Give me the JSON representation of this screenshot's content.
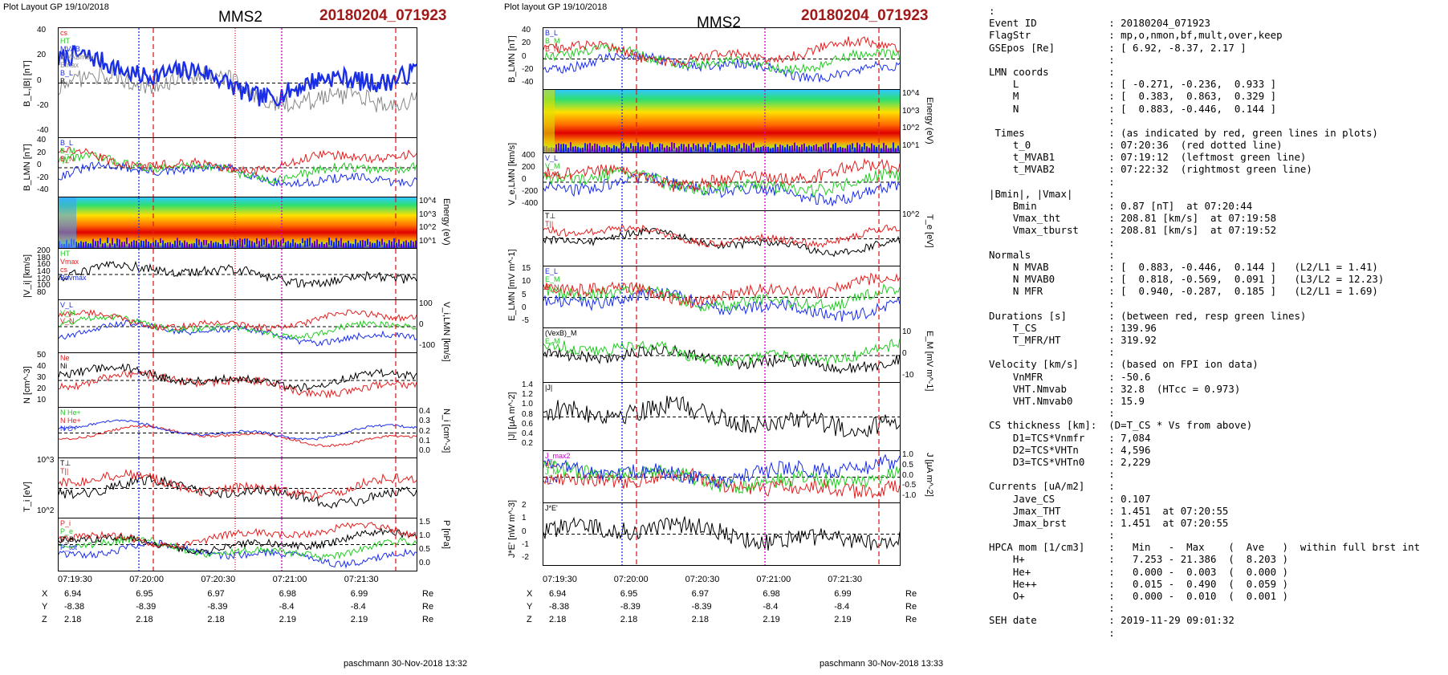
{
  "left_figure": {
    "header_left": "Plot Layout GP 19/10/2018",
    "spacecraft": "MMS2",
    "event": "20180204_071923",
    "panels": [
      {
        "ylabel": "B_L,|B| [nT]",
        "yticks": [
          "40",
          "20",
          "0",
          "-20",
          "-40"
        ],
        "legend": [
          "cs",
          "HT",
          "MVAB",
          "MVABmax",
          "Bmax",
          "B_L",
          "B"
        ]
      },
      {
        "ylabel": "B_LMN [nT]",
        "yticks": [
          "40",
          "20",
          "0",
          "-20",
          "-40"
        ],
        "legend": [
          "B_L",
          "B_M",
          "B_N"
        ]
      },
      {
        "ylabel": "",
        "ryticks": [
          "10^4",
          "10^3",
          "10^2",
          "10^1"
        ],
        "rlabel": "Energy (eV)"
      },
      {
        "ylabel": "|V_i| [km/s]",
        "yticks": [
          "200",
          "180",
          "160",
          "140",
          "120",
          "100",
          "80"
        ],
        "legend": [
          "HT",
          "Vmax",
          "cs",
          "Bnvmax"
        ]
      },
      {
        "ylabel": "",
        "ryticks": [
          "100",
          "0",
          "-100"
        ],
        "rlabel": "V_i,LMN [km/s]",
        "legend": [
          "V_L",
          "V_M",
          "V_N"
        ]
      },
      {
        "ylabel": "N [cm^-3]",
        "yticks": [
          "50",
          "40",
          "30",
          "20",
          "10"
        ],
        "legend": [
          "Ne",
          "Ni"
        ]
      },
      {
        "ylabel": "",
        "ryticks": [
          "0.4",
          "0.3",
          "0.2",
          "0.1",
          "0.0"
        ],
        "rlabel": "N_i [cm^-3]",
        "legend": [
          "N He+",
          "N He+",
          "N O+"
        ]
      },
      {
        "ylabel": "T_i [eV]",
        "yticks": [
          "10^3",
          "10^2"
        ],
        "legend": [
          "T⊥",
          "T||"
        ]
      },
      {
        "ylabel": "",
        "ryticks": [
          "1.5",
          "1.0",
          "0.5",
          "0.0"
        ],
        "rlabel": "P [nPa]",
        "legend": [
          "P_i",
          "P_e",
          "P_B",
          "P_tot"
        ]
      }
    ],
    "xticks": [
      "07:19:30",
      "07:20:00",
      "07:20:30",
      "07:21:00",
      "07:21:30"
    ],
    "coords": {
      "X": [
        "6.94",
        "6.95",
        "6.97",
        "6.98",
        "6.99"
      ],
      "Y": [
        "-8.38",
        "-8.39",
        "-8.39",
        "-8.4",
        "-8.4"
      ],
      "Z": [
        "2.18",
        "2.18",
        "2.18",
        "2.19",
        "2.19"
      ],
      "unit": "Re"
    },
    "footer": "paschmann 30-Nov-2018 13:32"
  },
  "right_figure": {
    "header_left": "Plot layout GP 19/10/2018",
    "spacecraft": "MMS2",
    "event": "20180204_071923",
    "panels": [
      {
        "ylabel": "B_LMN [nT]",
        "yticks": [
          "40",
          "20",
          "0",
          "-20",
          "-40"
        ],
        "legend": [
          "B_L",
          "B_M",
          "B_N"
        ]
      },
      {
        "ylabel": "",
        "ryticks": [
          "10^4",
          "10^3",
          "10^2",
          "10^1"
        ],
        "rlabel": "Energy (eV)"
      },
      {
        "ylabel": "V_e,LMN [km/s]",
        "yticks": [
          "400",
          "200",
          "0",
          "-200",
          "-400"
        ],
        "legend": [
          "V_L",
          "V_M",
          "V_N"
        ]
      },
      {
        "ylabel": "",
        "ryticks": [
          "10^2"
        ],
        "rlabel": "T_e [eV]",
        "legend": [
          "T⊥",
          "T||"
        ]
      },
      {
        "ylabel": "E_LMN [mV m^-1]",
        "yticks": [
          "15",
          "10",
          "5",
          "0",
          "-5"
        ],
        "legend": [
          "E_L",
          "E_M",
          "E_N"
        ]
      },
      {
        "ylabel": "",
        "ryticks": [
          "10",
          "0",
          "-10"
        ],
        "rlabel": "E_M [mV m^-1]",
        "legend": [
          "(VexB)_M",
          "E_M"
        ]
      },
      {
        "ylabel": "|J| [µA m^-2]",
        "yticks": [
          "1.4",
          "1.2",
          "1.0",
          "0.8",
          "0.6",
          "0.4",
          "0.2"
        ],
        "legend": [
          "|J|"
        ]
      },
      {
        "ylabel": "",
        "ryticks": [
          "1.0",
          "0.5",
          "0.0",
          "-0.5",
          "-1.0"
        ],
        "rlabel": "J [µA m^-2]",
        "legend": [
          "J_max2",
          "J_L",
          "J_M",
          "J_N"
        ]
      },
      {
        "ylabel": "J*E' [nW m^-3]",
        "yticks": [
          "2",
          "1",
          "0",
          "-1",
          "-2"
        ],
        "legend": [
          "J*E'"
        ]
      }
    ],
    "xticks": [
      "07:19:30",
      "07:20:00",
      "07:20:30",
      "07:21:00",
      "07:21:30"
    ],
    "coords": {
      "X": [
        "6.94",
        "6.95",
        "6.97",
        "6.98",
        "6.99"
      ],
      "Y": [
        "-8.38",
        "-8.39",
        "-8.39",
        "-8.4",
        "-8.4"
      ],
      "Z": [
        "2.18",
        "2.18",
        "2.18",
        "2.19",
        "2.19"
      ],
      "unit": "Re"
    },
    "footer": "paschmann 30-Nov-2018 13:33"
  },
  "info_lines": [
    ":",
    "Event ID            : 20180204_071923",
    "FlagStr             : mp,o,nmon,bf,mult,over,keep",
    "GSEpos [Re]         : [ 6.92, -8.37, 2.17 ]",
    "                    :",
    "LMN coords          :",
    "    L               : [ -0.271, -0.236,  0.933 ]",
    "    M               : [  0.383,  0.863,  0.329 ]",
    "    N               : [  0.883, -0.446,  0.144 ]",
    "                    :",
    " Times              : (as indicated by red, green lines in plots)",
    "    t_0             : 07:20:36  (red dotted line)",
    "    t_MVAB1         : 07:19:12  (leftmost green line)",
    "    t_MVAB2         : 07:22:32  (rightmost green line)",
    "                    :",
    "|Bmin|, |Vmax|      :",
    "    Bmin            : 0.87 [nT]  at 07:20:44",
    "    Vmax_tht        : 208.81 [km/s]  at 07:19:58",
    "    Vmax_tburst     : 208.81 [km/s]  at 07:19:52",
    "                    :",
    "Normals             :",
    "    N MVAB          : [  0.883, -0.446,  0.144 ]   (L2/L1 = 1.41)",
    "    N MVAB0         : [  0.818, -0.569,  0.091 ]   (L3/L2 = 12.23)",
    "    N MFR           : [  0.940, -0.287,  0.185 ]   (L2/L1 = 1.69)",
    "                    :",
    "Durations [s]       : (between red, resp green lines)",
    "    T_CS            : 139.96",
    "    T_MFR/HT        : 319.92",
    "                    :",
    "Velocity [km/s]     : (based on FPI ion data)",
    "    VnMFR           : -50.6",
    "    VHT.Nmvab       : 32.8  (HTcc = 0.973)",
    "    VHT.Nmvab0      : 15.9",
    "                    :",
    "CS thickness [km]:  (D=T_CS * Vs from above)",
    "    D1=TCS*Vnmfr    : 7,084",
    "    D2=TCS*VHTn     : 4,596",
    "    D3=TCS*VHTn0    : 2,229",
    "                    :",
    "Currents [uA/m2]    :",
    "    Jave_CS         : 0.107",
    "    Jmax_THT        : 1.451  at 07:20:55",
    "    Jmax_brst       : 1.451  at 07:20:55",
    "                    :",
    "HPCA mom [1/cm3]    :   Min   -  Max    (  Ave   )  within full brst int",
    "    H+              :   7.253 - 21.386  (  8.203 )",
    "    He+             :   0.000 -  0.003  (  0.000 )",
    "    He++            :   0.015 -  0.490  (  0.059 )",
    "    O+              :   0.000 -  0.010  (  0.001 )",
    "                    :",
    "SEH date            : 2019-11-29 09:01:32",
    "                    :"
  ],
  "chart_data": [
    {
      "type": "line",
      "title": "MMS2 20180204_071923 (left)",
      "x_axis": [
        "07:19:30",
        "07:20:00",
        "07:20:30",
        "07:21:00",
        "07:21:30"
      ],
      "panel_count": 9,
      "markers": {
        "red_dashed": [
          "07:20:03",
          "07:21:47"
        ],
        "blue_dotted": [
          "07:19:57"
        ],
        "magenta_dotted": [
          "07:20:56"
        ],
        "red_dotted": [
          "07:20:36"
        ]
      },
      "colors": {
        "red": "#e02020",
        "blue": "#1a2ee6",
        "green": "#22cc22",
        "black": "#000000",
        "magenta": "#cc00cc",
        "gray": "#888888"
      }
    },
    {
      "type": "line",
      "title": "MMS2 20180204_071923 (right)",
      "x_axis": [
        "07:19:30",
        "07:20:00",
        "07:20:30",
        "07:21:00",
        "07:21:30"
      ],
      "panel_count": 9,
      "markers": {
        "red_dashed": [
          "07:20:03",
          "07:21:47"
        ],
        "blue_dotted": [
          "07:19:57"
        ],
        "magenta_dotted": [
          "07:20:56"
        ]
      }
    }
  ]
}
